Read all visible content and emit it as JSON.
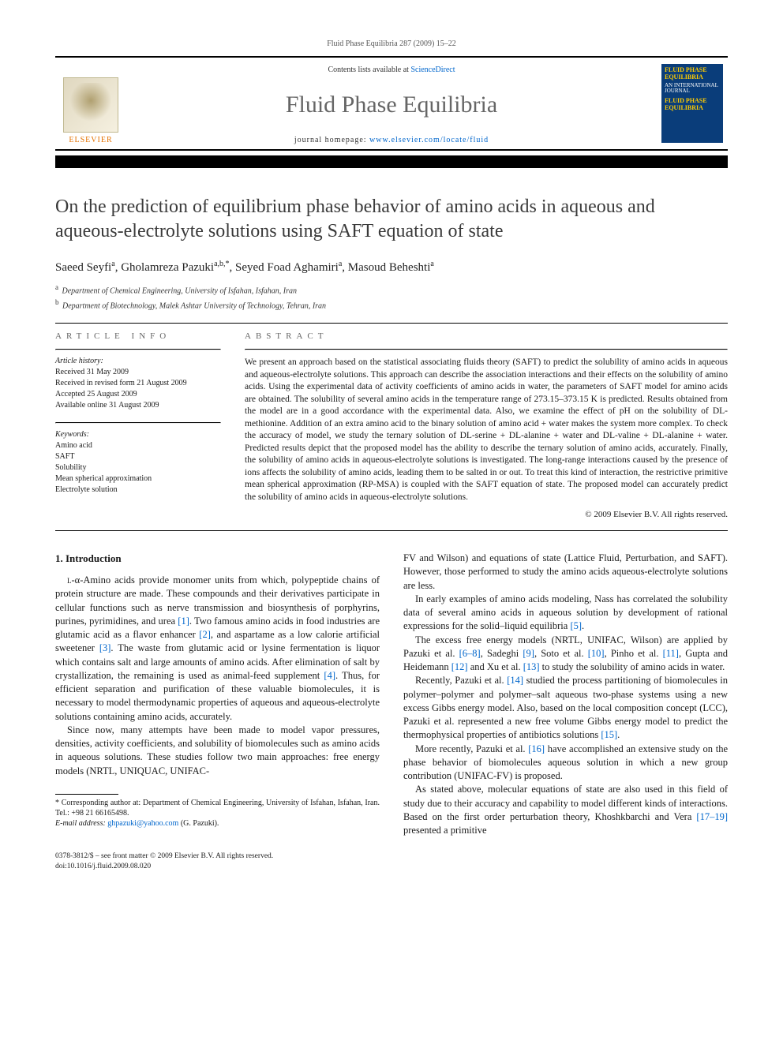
{
  "running_head": "Fluid Phase Equilibria 287 (2009) 15–22",
  "masthead": {
    "contents_prefix": "Contents lists available at ",
    "contents_link": "ScienceDirect",
    "journal": "Fluid Phase Equilibria",
    "homepage_prefix": "journal homepage: ",
    "homepage_link": "www.elsevier.com/locate/fluid",
    "publisher": "ELSEVIER",
    "cover_title": "FLUID PHASE EQUILIBRIA",
    "cover_sub": "AN INTERNATIONAL JOURNAL"
  },
  "title": "On the prediction of equilibrium phase behavior of amino acids in aqueous and aqueous-electrolyte solutions using SAFT equation of state",
  "authors_html": "Saeed Seyfi<sup>a</sup>, Gholamreza Pazuki<sup>a,b,*</sup>, Seyed Foad Aghamiri<sup>a</sup>, Masoud Beheshti<sup>a</sup>",
  "affiliations": [
    {
      "sup": "a",
      "text": "Department of Chemical Engineering, University of Isfahan, Isfahan, Iran"
    },
    {
      "sup": "b",
      "text": "Department of Biotechnology, Malek Ashtar University of Technology, Tehran, Iran"
    }
  ],
  "article_info_label": "article info",
  "abstract_label": "abstract",
  "history_label": "Article history:",
  "history": [
    "Received 31 May 2009",
    "Received in revised form 21 August 2009",
    "Accepted 25 August 2009",
    "Available online 31 August 2009"
  ],
  "keywords_label": "Keywords:",
  "keywords": [
    "Amino acid",
    "SAFT",
    "Solubility",
    "Mean spherical approximation",
    "Electrolyte solution"
  ],
  "abstract": "We present an approach based on the statistical associating fluids theory (SAFT) to predict the solubility of amino acids in aqueous and aqueous-electrolyte solutions. This approach can describe the association interactions and their effects on the solubility of amino acids. Using the experimental data of activity coefficients of amino acids in water, the parameters of SAFT model for amino acids are obtained. The solubility of several amino acids in the temperature range of 273.15–373.15 K is predicted. Results obtained from the model are in a good accordance with the experimental data. Also, we examine the effect of pH on the solubility of DL-methionine. Addition of an extra amino acid to the binary solution of amino acid + water makes the system more complex. To check the accuracy of model, we study the ternary solution of DL-serine + DL-alanine + water and DL-valine + DL-alanine + water. Predicted results depict that the proposed model has the ability to describe the ternary solution of amino acids, accurately. Finally, the solubility of amino acids in aqueous-electrolyte solutions is investigated. The long-range interactions caused by the presence of ions affects the solubility of amino acids, leading them to be salted in or out. To treat this kind of interaction, the restrictive primitive mean spherical approximation (RP-MSA) is coupled with the SAFT equation of state. The proposed model can accurately predict the solubility of amino acids in aqueous-electrolyte solutions.",
  "copyright": "© 2009 Elsevier B.V. All rights reserved.",
  "section1_head": "1. Introduction",
  "col1_paras": [
    "L-α-Amino acids provide monomer units from which, polypeptide chains of protein structure are made. These compounds and their derivatives participate in cellular functions such as nerve transmission and biosynthesis of porphyrins, purines, pyrimidines, and urea [1]. Two famous amino acids in food industries are glutamic acid as a flavor enhancer [2], and aspartame as a low calorie artificial sweetener [3]. The waste from glutamic acid or lysine fermentation is liquor which contains salt and large amounts of amino acids. After elimination of salt by crystallization, the remaining is used as animal-feed supplement [4]. Thus, for efficient separation and purification of these valuable biomolecules, it is necessary to model thermodynamic properties of aqueous and aqueous-electrolyte solutions containing amino acids, accurately.",
    "Since now, many attempts have been made to model vapor pressures, densities, activity coefficients, and solubility of biomolecules such as amino acids in aqueous solutions. These studies follow two main approaches: free energy models (NRTL, UNIQUAC, UNIFAC-"
  ],
  "col2_paras": [
    "FV and Wilson) and equations of state (Lattice Fluid, Perturbation, and SAFT). However, those performed to study the amino acids aqueous-electrolyte solutions are less.",
    "In early examples of amino acids modeling, Nass has correlated the solubility data of several amino acids in aqueous solution by development of rational expressions for the solid–liquid equilibria [5].",
    "The excess free energy models (NRTL, UNIFAC, Wilson) are applied by Pazuki et al. [6–8], Sadeghi [9], Soto et al. [10], Pinho et al. [11], Gupta and Heidemann [12] and Xu et al. [13] to study the solubility of amino acids in water.",
    "Recently, Pazuki et al. [14] studied the process partitioning of biomolecules in polymer–polymer and polymer–salt aqueous two-phase systems using a new excess Gibbs energy model. Also, based on the local composition concept (LCC), Pazuki et al. represented a new free volume Gibbs energy model to predict the thermophysical properties of antibiotics solutions [15].",
    "More recently, Pazuki et al. [16] have accomplished an extensive study on the phase behavior of biomolecules aqueous solution in which a new group contribution (UNIFAC-FV) is proposed.",
    "As stated above, molecular equations of state are also used in this field of study due to their accuracy and capability to model different kinds of interactions. Based on the first order perturbation theory, Khoshkbarchi and Vera [17–19] presented a primitive"
  ],
  "footnotes": {
    "corresponding": "* Corresponding author at: Department of Chemical Engineering, University of Isfahan, Isfahan, Iran. Tel.: +98 21 66165498.",
    "email_label": "E-mail address: ",
    "email": "ghpazuki@yahoo.com",
    "email_person": " (G. Pazuki)."
  },
  "bottom": {
    "issn": "0378-3812/$ – see front matter © 2009 Elsevier B.V. All rights reserved.",
    "doi": "doi:10.1016/j.fluid.2009.08.020"
  },
  "colors": {
    "link": "#0066cc",
    "elsevier_orange": "#e57200",
    "cover_bg": "#0a3d7a",
    "cover_accent": "#ffcc00"
  }
}
